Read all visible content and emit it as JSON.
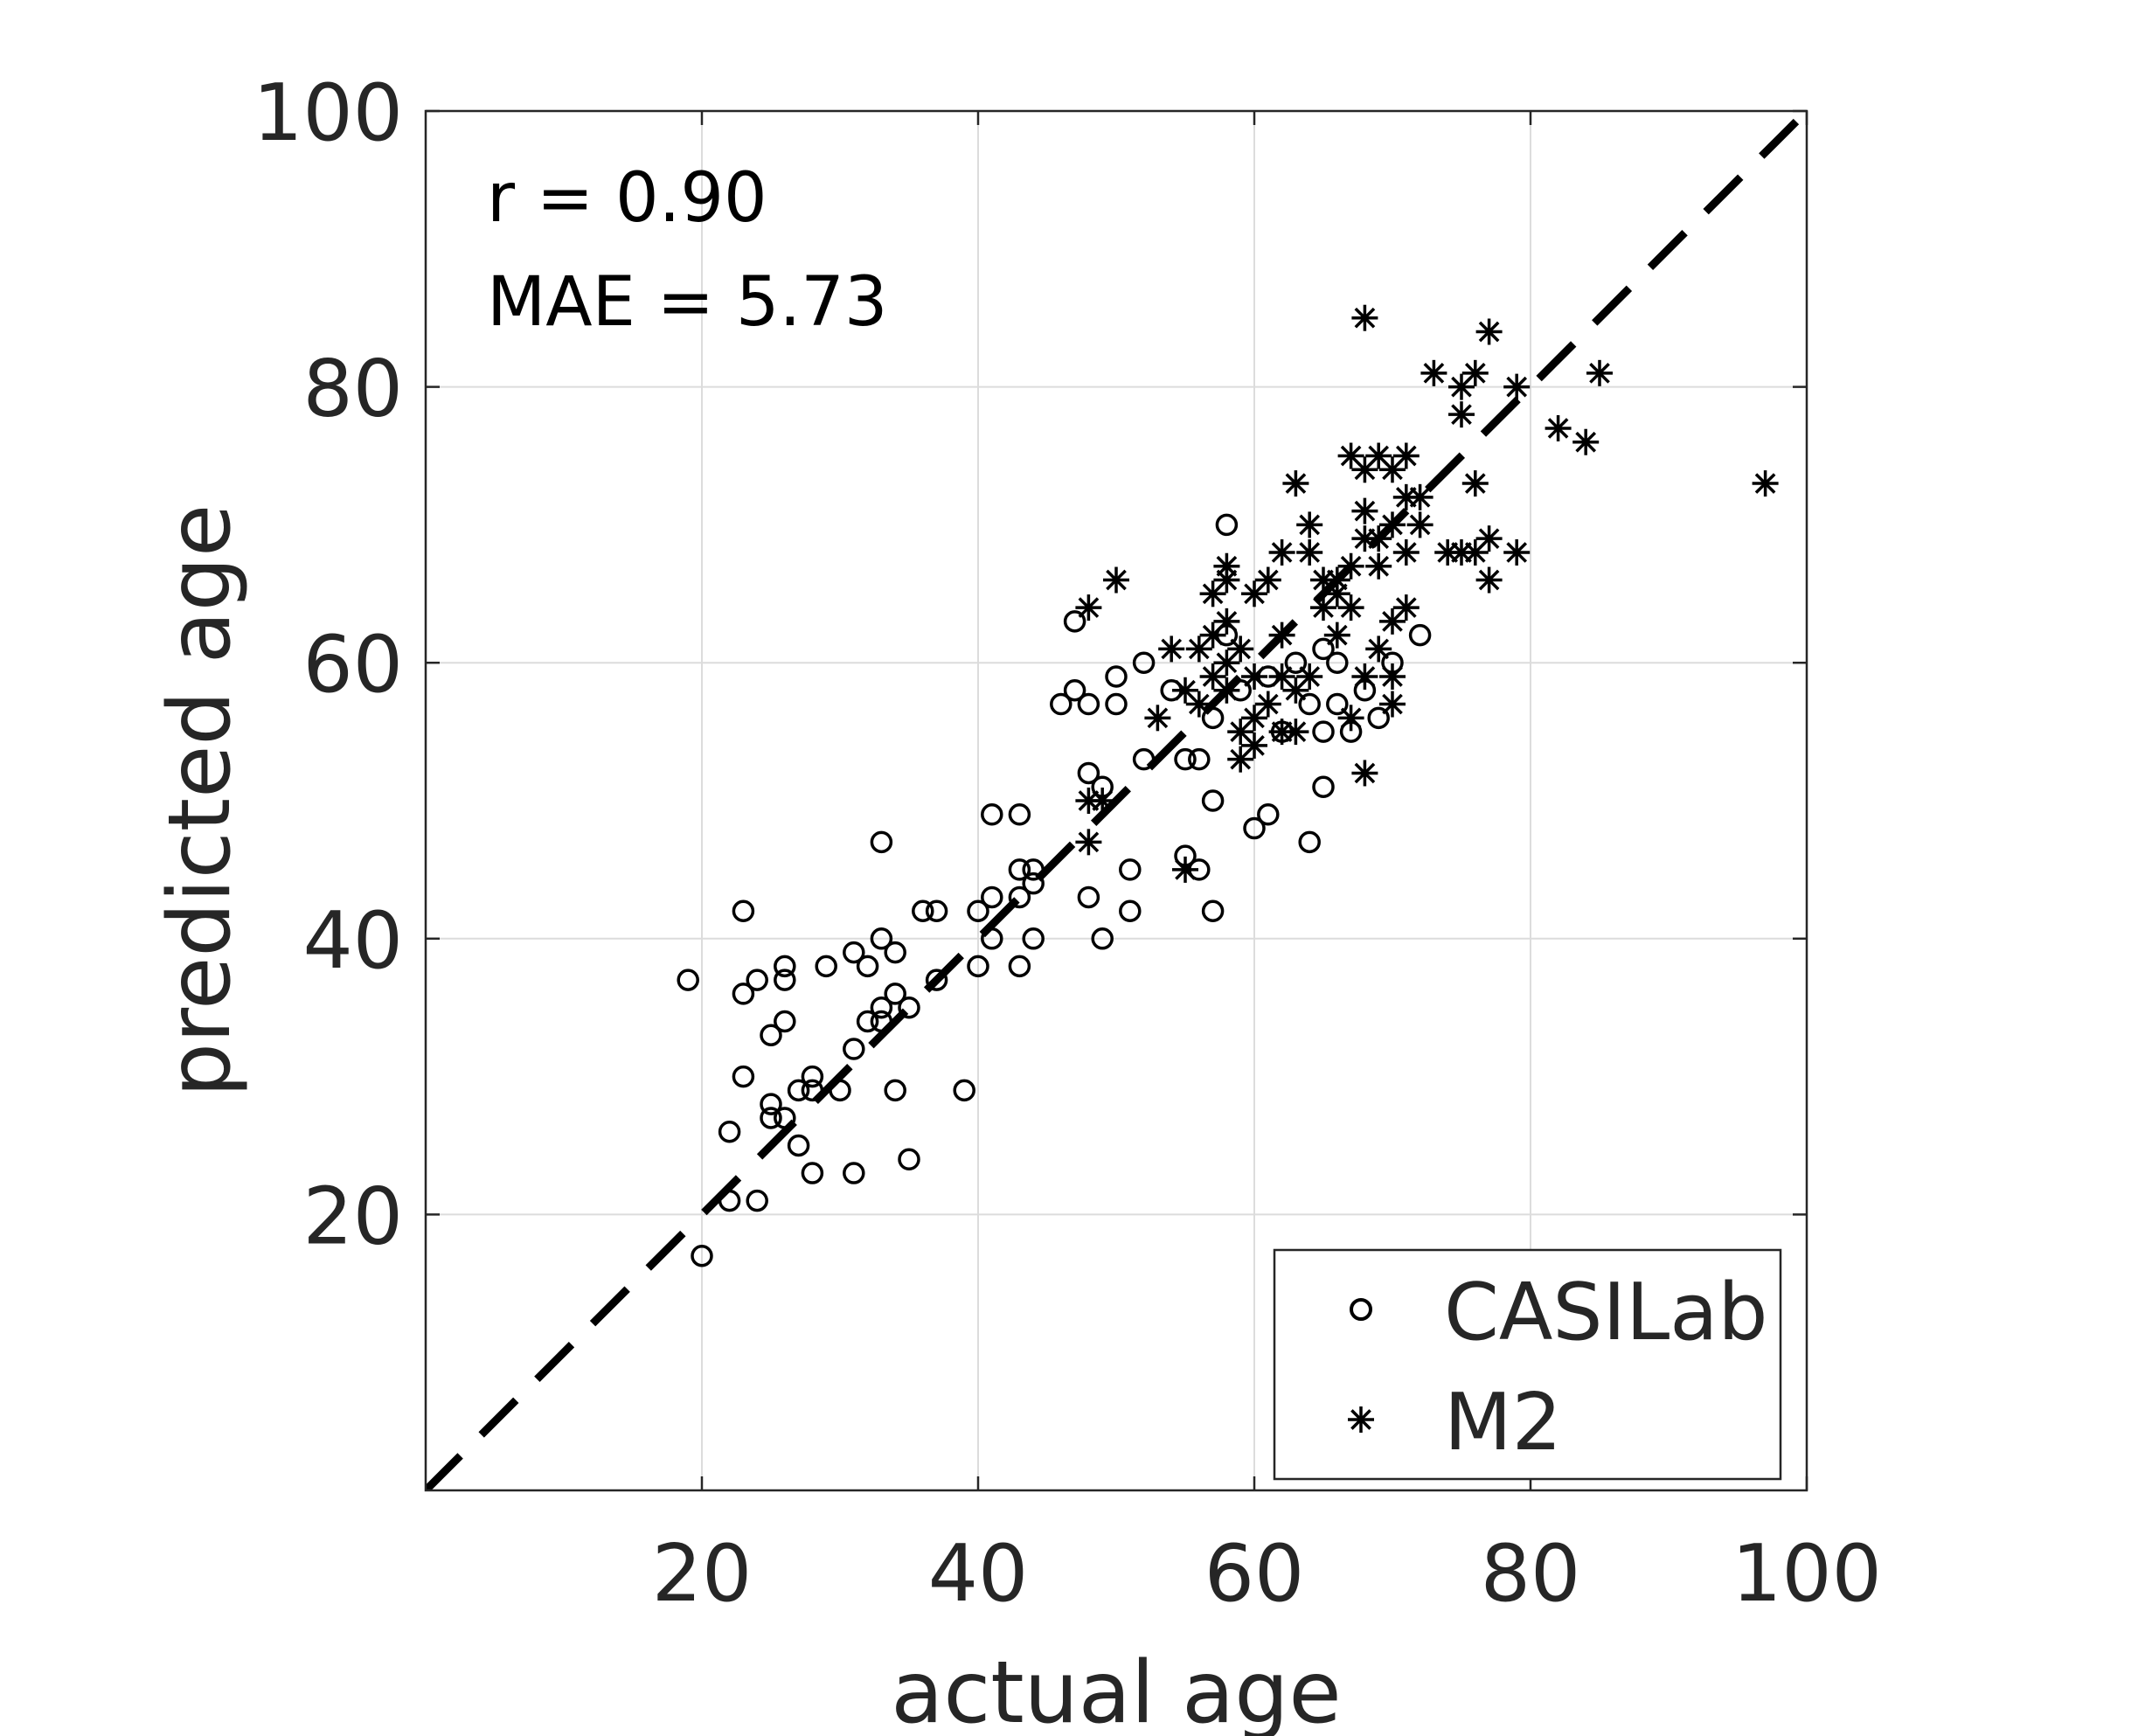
{
  "chart_data": {
    "type": "scatter",
    "title": "",
    "xlabel": "actual age",
    "ylabel": "predicted age",
    "xlim": [
      0,
      100
    ],
    "ylim": [
      0,
      100
    ],
    "xticks": [
      20,
      40,
      60,
      80,
      100
    ],
    "yticks": [
      20,
      40,
      60,
      80,
      100
    ],
    "grid": true,
    "legend_position": "bottom-right",
    "annotations": [
      "r = 0.90",
      "MAE = 5.73"
    ],
    "reference_line": {
      "style": "dashed",
      "from": [
        0,
        0
      ],
      "to": [
        100,
        100
      ]
    },
    "series": [
      {
        "name": "CASILab",
        "marker": "circle",
        "points": [
          [
            19,
            37
          ],
          [
            20,
            17
          ],
          [
            22,
            26
          ],
          [
            22,
            21
          ],
          [
            23,
            42
          ],
          [
            23,
            36
          ],
          [
            23,
            30
          ],
          [
            24,
            37
          ],
          [
            24,
            21
          ],
          [
            25,
            33
          ],
          [
            25,
            28
          ],
          [
            25,
            27
          ],
          [
            26,
            38
          ],
          [
            26,
            37
          ],
          [
            26,
            34
          ],
          [
            26,
            27
          ],
          [
            27,
            29
          ],
          [
            27,
            25
          ],
          [
            28,
            30
          ],
          [
            28,
            29
          ],
          [
            28,
            23
          ],
          [
            29,
            38
          ],
          [
            30,
            29
          ],
          [
            31,
            39
          ],
          [
            31,
            32
          ],
          [
            31,
            23
          ],
          [
            32,
            38
          ],
          [
            32,
            34
          ],
          [
            33,
            47
          ],
          [
            33,
            40
          ],
          [
            33,
            35
          ],
          [
            33,
            34
          ],
          [
            34,
            39
          ],
          [
            34,
            36
          ],
          [
            34,
            29
          ],
          [
            35,
            35
          ],
          [
            35,
            24
          ],
          [
            36,
            42
          ],
          [
            37,
            42
          ],
          [
            37,
            37
          ],
          [
            39,
            29
          ],
          [
            40,
            42
          ],
          [
            40,
            38
          ],
          [
            41,
            49
          ],
          [
            41,
            43
          ],
          [
            41,
            40
          ],
          [
            43,
            49
          ],
          [
            43,
            45
          ],
          [
            43,
            43
          ],
          [
            43,
            38
          ],
          [
            44,
            45
          ],
          [
            44,
            44
          ],
          [
            44,
            40
          ],
          [
            46,
            57
          ],
          [
            47,
            63
          ],
          [
            47,
            58
          ],
          [
            48,
            57
          ],
          [
            48,
            52
          ],
          [
            48,
            43
          ],
          [
            49,
            51
          ],
          [
            49,
            40
          ],
          [
            50,
            59
          ],
          [
            50,
            57
          ],
          [
            51,
            45
          ],
          [
            51,
            42
          ],
          [
            52,
            60
          ],
          [
            52,
            53
          ],
          [
            54,
            58
          ],
          [
            55,
            53
          ],
          [
            55,
            46
          ],
          [
            56,
            53
          ],
          [
            56,
            45
          ],
          [
            57,
            56
          ],
          [
            57,
            50
          ],
          [
            57,
            42
          ],
          [
            58,
            70
          ],
          [
            58,
            62
          ],
          [
            59,
            58
          ],
          [
            60,
            48
          ],
          [
            61,
            49
          ],
          [
            61,
            59
          ],
          [
            62,
            55
          ],
          [
            63,
            60
          ],
          [
            64,
            57
          ],
          [
            64,
            47
          ],
          [
            65,
            61
          ],
          [
            65,
            55
          ],
          [
            65,
            51
          ],
          [
            66,
            60
          ],
          [
            66,
            57
          ],
          [
            67,
            55
          ],
          [
            68,
            58
          ],
          [
            69,
            56
          ],
          [
            70,
            60
          ],
          [
            72,
            62
          ]
        ]
      },
      {
        "name": "M2",
        "marker": "asterisk",
        "points": [
          [
            48,
            64
          ],
          [
            48,
            47
          ],
          [
            48,
            50
          ],
          [
            49,
            50
          ],
          [
            50,
            66
          ],
          [
            53,
            56
          ],
          [
            54,
            61
          ],
          [
            55,
            45
          ],
          [
            55,
            58
          ],
          [
            56,
            57
          ],
          [
            56,
            61
          ],
          [
            57,
            65
          ],
          [
            57,
            62
          ],
          [
            57,
            59
          ],
          [
            58,
            67
          ],
          [
            58,
            66
          ],
          [
            58,
            63
          ],
          [
            58,
            60
          ],
          [
            58,
            58
          ],
          [
            59,
            55
          ],
          [
            59,
            53
          ],
          [
            59,
            61
          ],
          [
            60,
            56
          ],
          [
            60,
            59
          ],
          [
            60,
            65
          ],
          [
            60,
            54
          ],
          [
            61,
            66
          ],
          [
            61,
            57
          ],
          [
            62,
            68
          ],
          [
            62,
            62
          ],
          [
            62,
            59
          ],
          [
            62,
            55
          ],
          [
            63,
            73
          ],
          [
            63,
            58
          ],
          [
            63,
            55
          ],
          [
            64,
            70
          ],
          [
            64,
            68
          ],
          [
            64,
            59
          ],
          [
            65,
            66
          ],
          [
            65,
            64
          ],
          [
            66,
            65
          ],
          [
            66,
            62
          ],
          [
            66,
            66
          ],
          [
            67,
            75
          ],
          [
            67,
            67
          ],
          [
            67,
            64
          ],
          [
            67,
            56
          ],
          [
            68,
            85
          ],
          [
            68,
            74
          ],
          [
            68,
            71
          ],
          [
            68,
            69
          ],
          [
            68,
            59
          ],
          [
            68,
            52
          ],
          [
            69,
            75
          ],
          [
            69,
            69
          ],
          [
            69,
            67
          ],
          [
            69,
            61
          ],
          [
            70,
            74
          ],
          [
            70,
            70
          ],
          [
            70,
            63
          ],
          [
            70,
            59
          ],
          [
            70,
            57
          ],
          [
            71,
            75
          ],
          [
            71,
            72
          ],
          [
            71,
            68
          ],
          [
            71,
            64
          ],
          [
            72,
            72
          ],
          [
            72,
            70
          ],
          [
            73,
            81
          ],
          [
            74,
            68
          ],
          [
            75,
            78
          ],
          [
            75,
            80
          ],
          [
            75,
            68
          ],
          [
            76,
            81
          ],
          [
            76,
            73
          ],
          [
            76,
            68
          ],
          [
            77,
            84
          ],
          [
            77,
            69
          ],
          [
            77,
            66
          ],
          [
            79,
            80
          ],
          [
            79,
            68
          ],
          [
            82,
            77
          ],
          [
            84,
            76
          ],
          [
            85,
            81
          ],
          [
            97,
            73
          ]
        ]
      }
    ]
  }
}
